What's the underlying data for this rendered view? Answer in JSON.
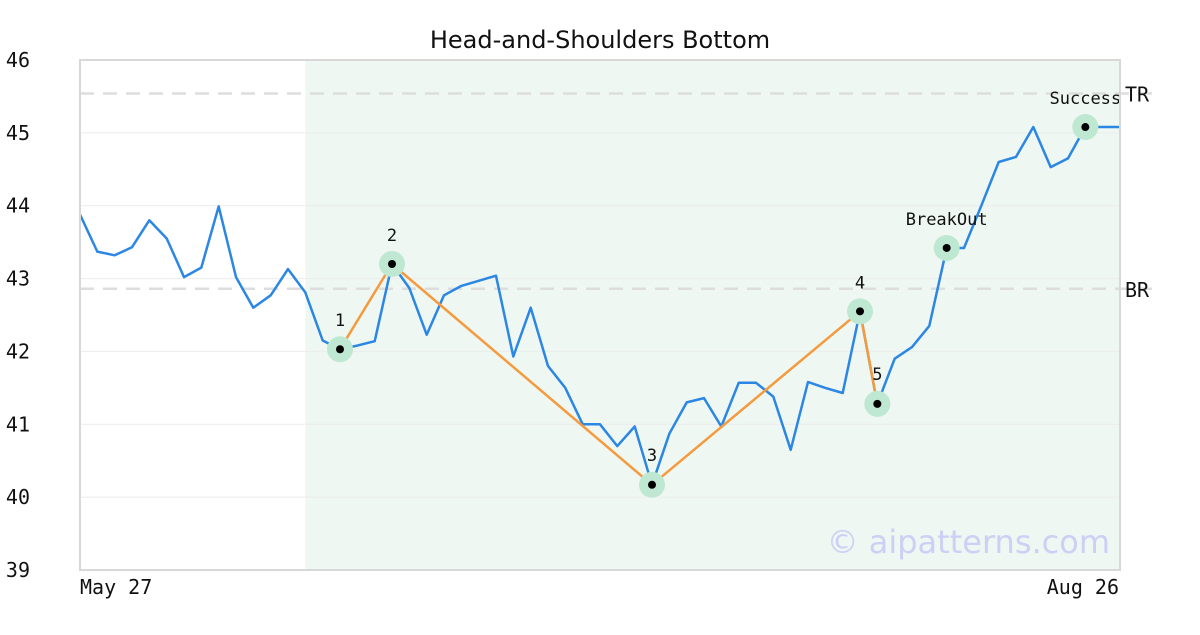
{
  "chart_data": {
    "type": "line",
    "title": "Head-and-Shoulders Bottom",
    "xlabel": "",
    "ylabel": "",
    "x_tick_labels": [
      "May 27",
      "Aug 26"
    ],
    "ylim": [
      39,
      46
    ],
    "y_ticks": [
      39,
      40,
      41,
      42,
      43,
      44,
      45,
      46
    ],
    "grid": true,
    "watermark": "© aipatterns.com",
    "colors": {
      "price": "#2b87e3",
      "pattern": "#f59a3d",
      "highlight": "#eef7f2",
      "marker_halo": "#bfe8d3",
      "reference": "#dddddd",
      "watermark": "#cfcff5"
    },
    "series": [
      {
        "values": [
          43.88,
          43.37,
          43.32,
          43.43,
          43.8,
          43.55,
          43.02,
          43.15,
          43.99,
          43.02,
          42.6,
          42.77,
          43.13,
          42.81,
          42.15,
          42.03,
          42.08,
          42.14,
          43.2,
          42.87,
          42.23,
          42.77,
          42.9,
          42.97,
          43.04,
          41.93,
          42.6,
          41.8,
          41.5,
          41.0,
          41.0,
          40.7,
          40.97,
          40.17,
          40.87,
          41.3,
          41.36,
          40.97,
          41.57,
          41.57,
          41.38,
          40.65,
          41.58,
          41.5,
          41.43,
          42.55,
          41.28,
          41.9,
          42.06,
          42.35,
          43.42,
          43.42,
          44.0,
          44.6,
          44.67,
          45.08,
          44.53,
          44.65,
          45.08,
          45.08,
          45.08
        ]
      }
    ],
    "highlight_region": {
      "start_index": 13,
      "end_index": 60
    },
    "reference_lines": [
      {
        "label": "TR",
        "value": 45.54
      },
      {
        "label": "BR",
        "value": 42.86
      }
    ],
    "pattern_points": [
      {
        "label": "1",
        "index": 15,
        "value": 42.03
      },
      {
        "label": "2",
        "index": 18,
        "value": 43.2
      },
      {
        "label": "3",
        "index": 33,
        "value": 40.17
      },
      {
        "label": "4",
        "index": 45,
        "value": 42.55
      },
      {
        "label": "5",
        "index": 46,
        "value": 41.28
      }
    ],
    "annotations": [
      {
        "label": "BreakOut",
        "index": 50,
        "value": 43.42
      },
      {
        "label": "Success",
        "index": 58,
        "value": 45.08
      }
    ]
  }
}
